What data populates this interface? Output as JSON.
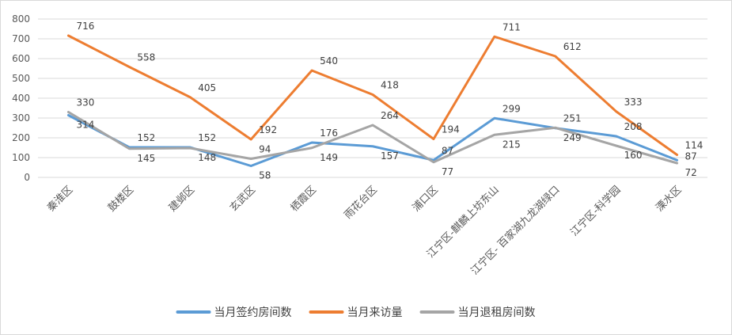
{
  "chart_data": {
    "type": "line",
    "categories": [
      "秦淮区",
      "鼓楼区",
      "建邺区",
      "玄武区",
      "栖霞区",
      "雨花台区",
      "浦口区",
      "江宁区-麒麟上坊东山",
      "江宁区- 百家湖九龙湖绿口",
      "江宁区-科学园",
      "溧水区"
    ],
    "series": [
      {
        "name": "当月签约房间数",
        "values": [
          314,
          152,
          152,
          58,
          176,
          157,
          87,
          299,
          249,
          208,
          87
        ],
        "color": "#5b9bd5"
      },
      {
        "name": "当月来访量",
        "values": [
          716,
          558,
          405,
          192,
          540,
          418,
          194,
          711,
          612,
          333,
          114
        ],
        "color": "#ed7d31"
      },
      {
        "name": "当月退租房间数",
        "values": [
          330,
          145,
          148,
          94,
          149,
          264,
          77,
          215,
          251,
          160,
          72
        ],
        "color": "#a5a5a5"
      }
    ],
    "ylim": [
      0,
      800
    ],
    "yticks": [
      0,
      100,
      200,
      300,
      400,
      500,
      600,
      700,
      800
    ],
    "grid": true,
    "legend_position": "bottom"
  }
}
